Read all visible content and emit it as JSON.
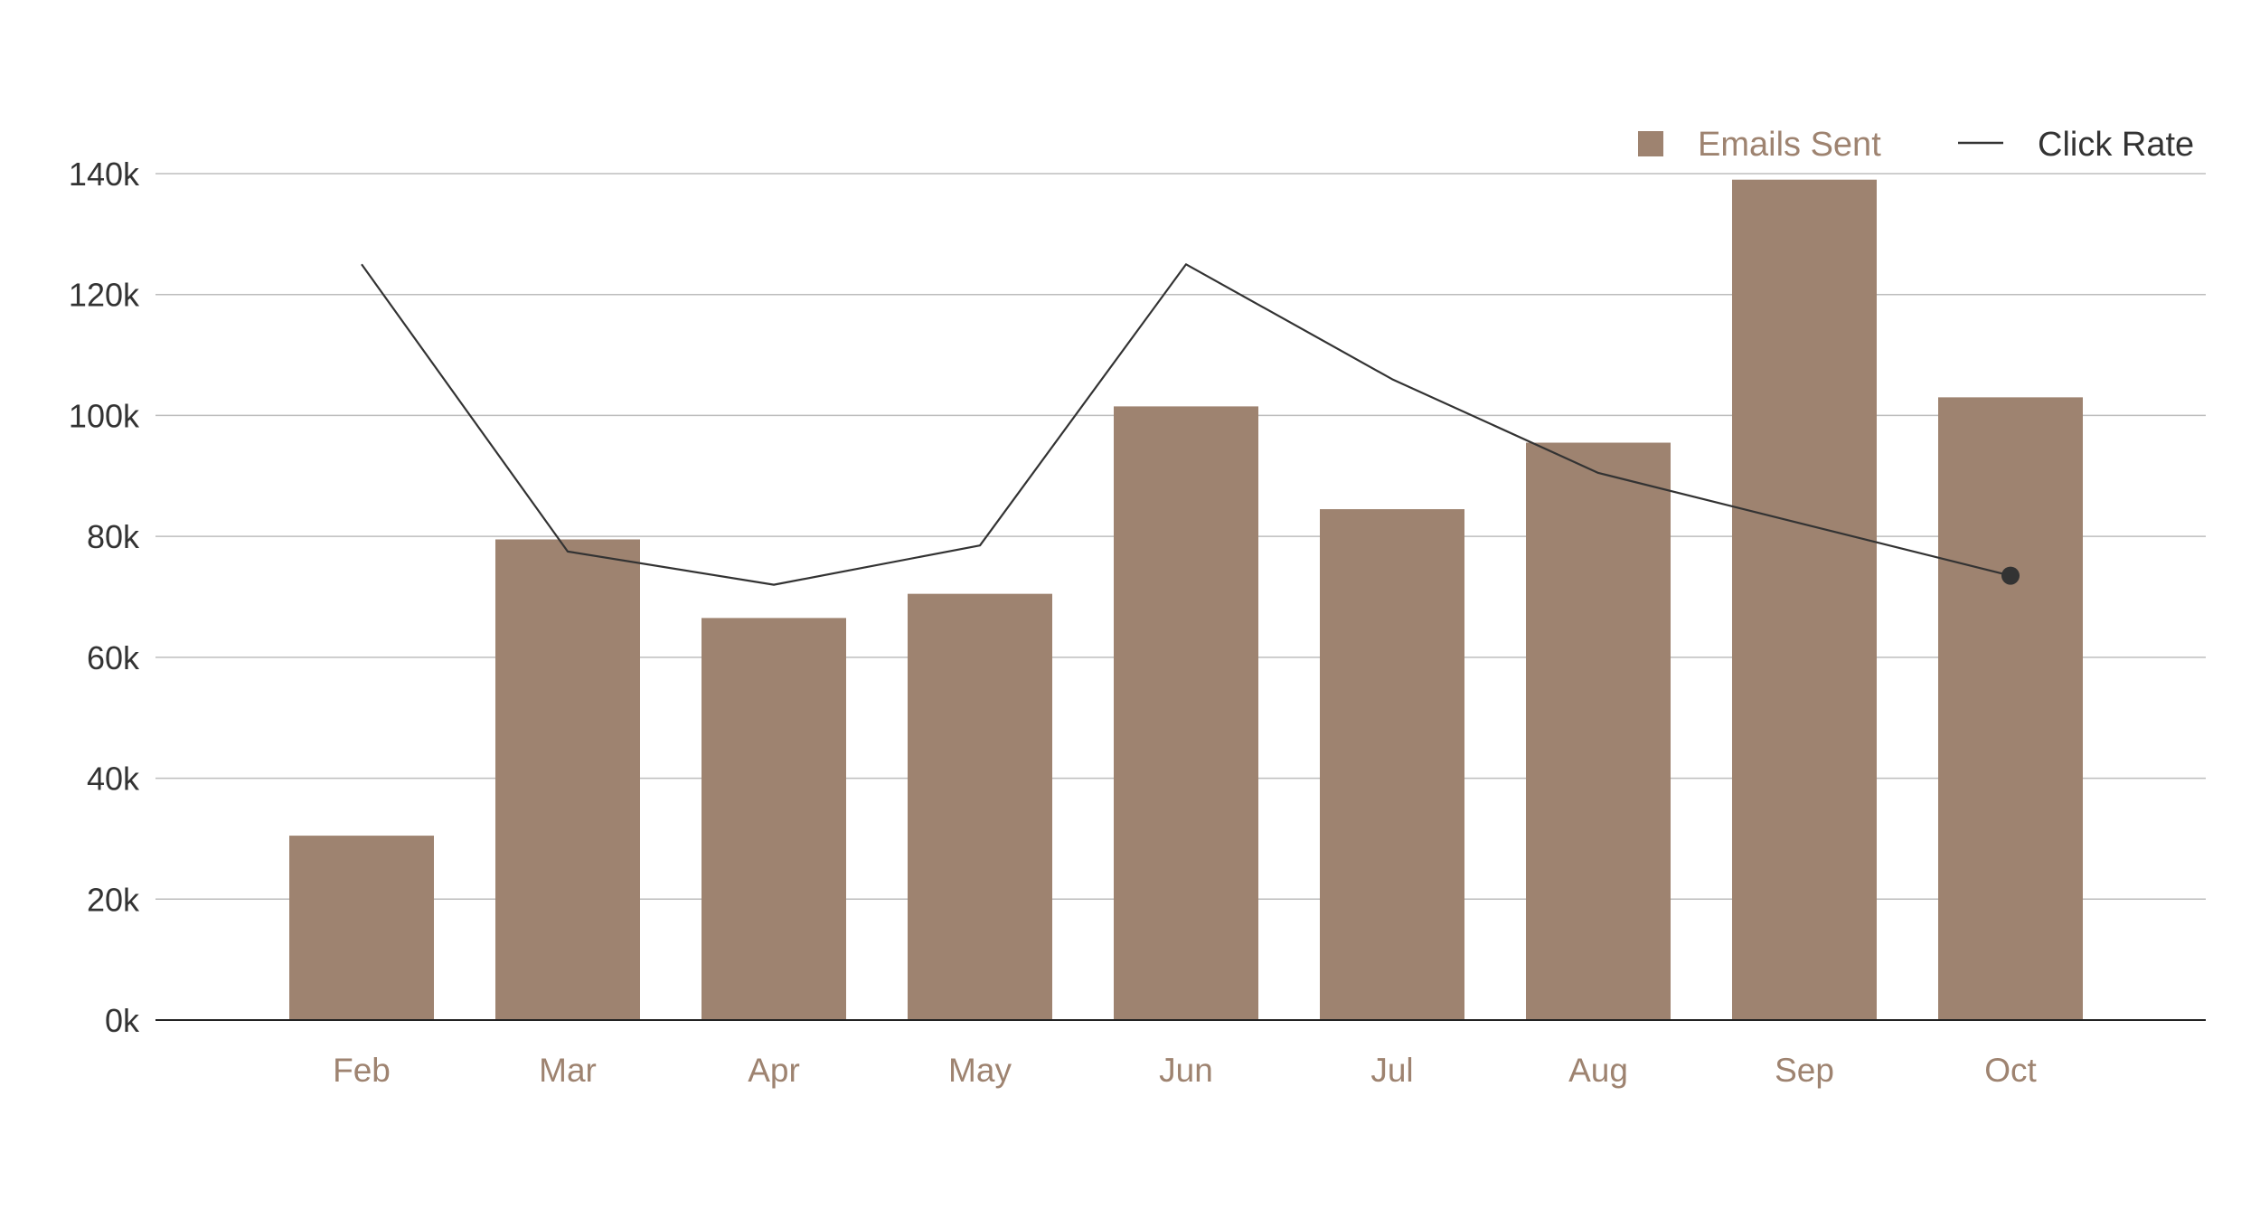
{
  "colors": {
    "bar": "#9e8370",
    "line": "#333333",
    "grid": "#bdbdbd",
    "axis": "#222222",
    "y_tick_text": "#333333",
    "x_tick_text": "#9e8370",
    "legend_bar_text": "#9e8370",
    "legend_line_text": "#333333"
  },
  "chart_data": {
    "type": "bar",
    "categories": [
      "Feb",
      "Mar",
      "Apr",
      "May",
      "Jun",
      "Jul",
      "Aug",
      "Sep",
      "Oct"
    ],
    "y_ticks": [
      "0k",
      "20k",
      "40k",
      "60k",
      "80k",
      "100k",
      "120k",
      "140k"
    ],
    "ylim": [
      0,
      140000
    ],
    "grid": true,
    "legend_position": "top-right",
    "series": [
      {
        "name": "Emails Sent",
        "type": "bar",
        "values": [
          30500,
          79500,
          66500,
          70500,
          101500,
          84500,
          95500,
          139000,
          103000
        ]
      },
      {
        "name": "Click Rate",
        "type": "line",
        "values": [
          125000,
          77500,
          72000,
          78500,
          125000,
          106000,
          90500,
          82000,
          73500
        ],
        "marker_on_last": true
      }
    ]
  }
}
